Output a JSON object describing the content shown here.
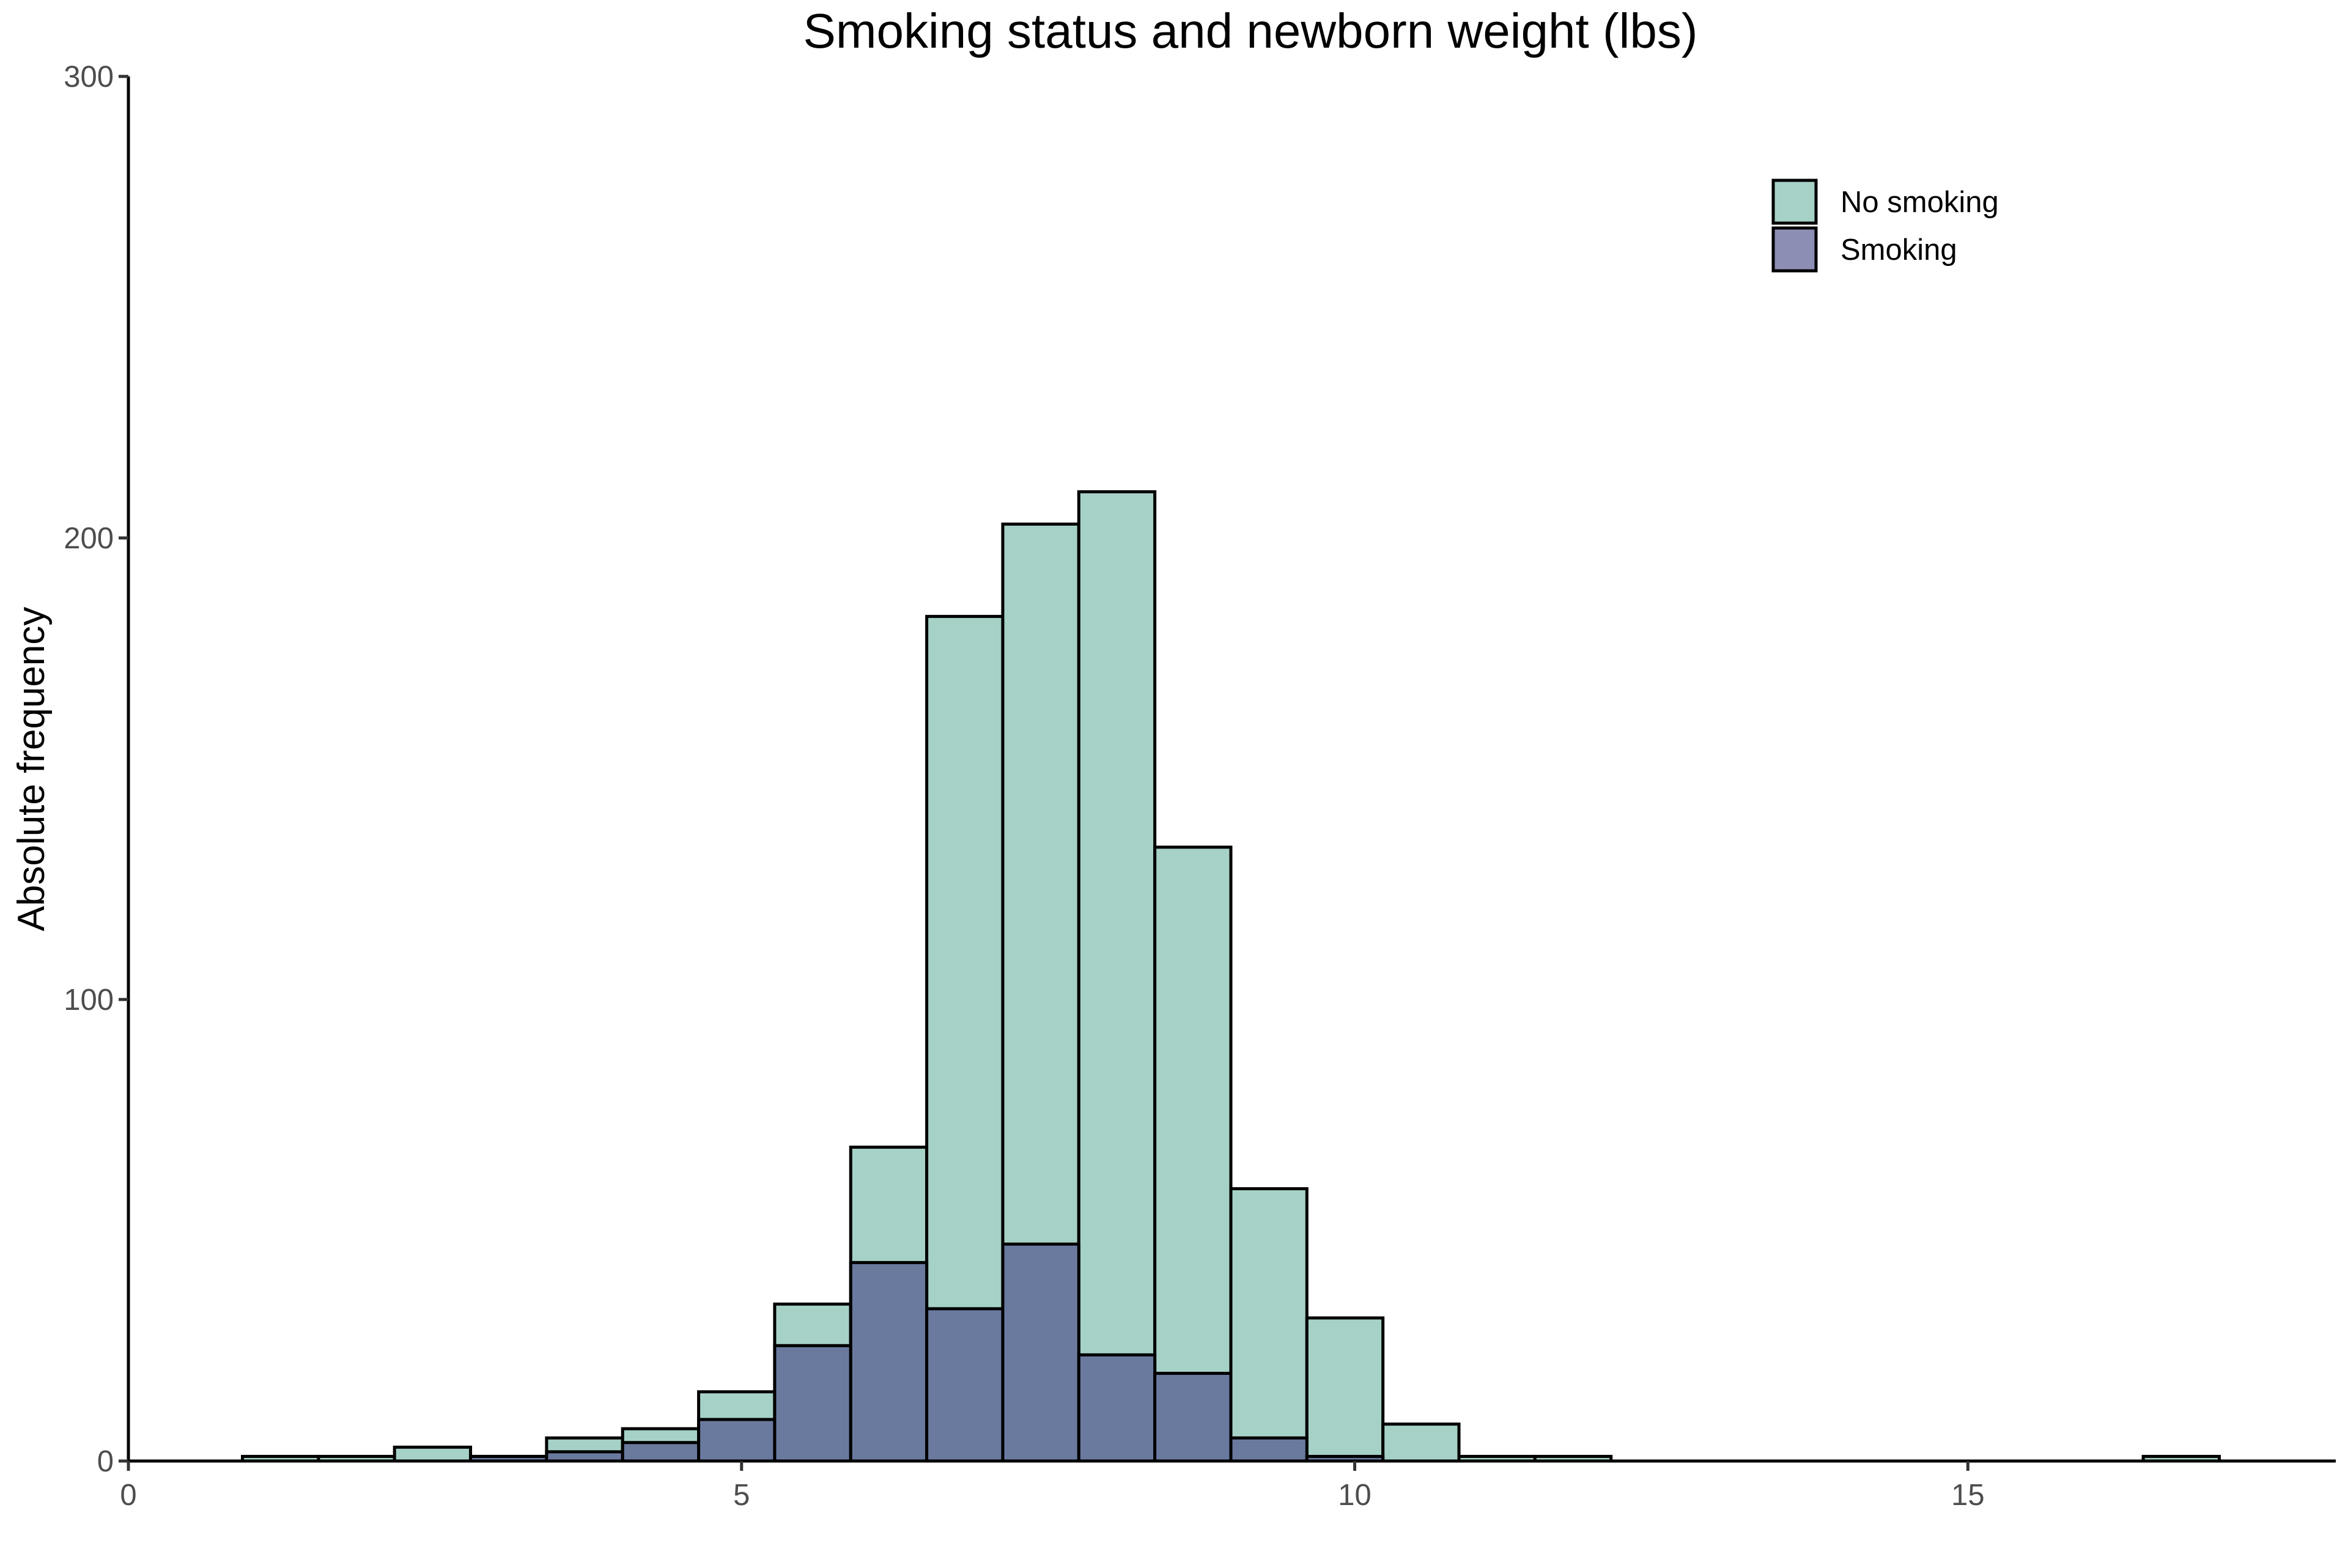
{
  "chart_data": {
    "type": "histogram",
    "title": "Smoking status and newborn weight (lbs)",
    "xlabel": "",
    "ylabel": "Absolute frequency",
    "xlim": [
      0,
      18
    ],
    "ylim": [
      0,
      300
    ],
    "x_ticks": [
      0,
      5,
      10,
      15
    ],
    "y_ticks": [
      0,
      100,
      200,
      300
    ],
    "grid": false,
    "legend_position": "top-right",
    "bin_width": 0.62,
    "bin_starts": [
      0.31,
      0.93,
      1.55,
      2.17,
      2.79,
      3.41,
      4.03,
      4.65,
      5.27,
      5.89,
      6.51,
      7.13,
      7.75,
      8.37,
      8.99,
      9.61,
      10.23,
      10.85,
      11.47,
      12.09,
      12.71,
      13.33,
      13.95,
      14.57,
      15.19,
      15.81,
      16.43,
      17.05
    ],
    "series": [
      {
        "name": "No smoking",
        "color": "#a6d1c7",
        "values": [
          0,
          1,
          1,
          3,
          1,
          5,
          7,
          15,
          34,
          68,
          183,
          203,
          210,
          133,
          59,
          31,
          8,
          1,
          1,
          0,
          0,
          0,
          0,
          0,
          0,
          0,
          1,
          0
        ]
      },
      {
        "name": "Smoking",
        "color": "#6a7a9f",
        "values": [
          0,
          0,
          0,
          0,
          1,
          2,
          4,
          9,
          25,
          43,
          33,
          47,
          23,
          19,
          5,
          1,
          0,
          0,
          0,
          0,
          0,
          0,
          0,
          0,
          0,
          0,
          0,
          0
        ]
      }
    ],
    "legend": {
      "items": [
        {
          "label": "No smoking",
          "color": "#a6d1c7"
        },
        {
          "label": "Smoking",
          "color": "#8c8fb3"
        }
      ]
    }
  }
}
